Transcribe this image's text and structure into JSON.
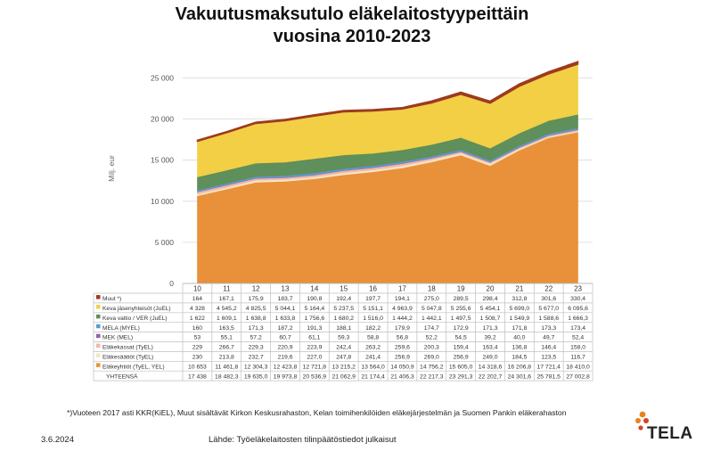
{
  "chart_data": {
    "type": "area",
    "title": "Vakuutusmaksutulo eläkelaitostyypeittäin",
    "subtitle": "vuosina 2010-2023",
    "ylabel": "Milj. eur",
    "ylim": [
      0,
      25000
    ],
    "yticks": [
      "0",
      "5 000",
      "10 000",
      "15 000",
      "20 000",
      "25 000"
    ],
    "ytick_values": [
      0,
      5000,
      10000,
      15000,
      20000,
      25000
    ],
    "categories": [
      "10",
      "11",
      "12",
      "13",
      "14",
      "15",
      "16",
      "17",
      "18",
      "19",
      "20",
      "21",
      "22",
      "23"
    ],
    "grid": true,
    "series": [
      {
        "name": "Eläkeyhtiöt (TyEL, YEL)",
        "color": "#E8913A",
        "values": [
          10653,
          11461.8,
          12304.3,
          12423.8,
          12721.8,
          13215.2,
          13564.0,
          14050.9,
          14756.2,
          15605.0,
          14318.6,
          16206.8,
          17721.4,
          18410.0
        ],
        "labels": [
          "10 653",
          "11 461,8",
          "12 304,3",
          "12 423,8",
          "12 721,8",
          "13 215,2",
          "13 564,0",
          "14 050,9",
          "14 756,2",
          "15 605,0",
          "14 318,6",
          "16 206,8",
          "17 721,4",
          "18 410,0"
        ]
      },
      {
        "name": "Eläkesäätiöt (TyEL)",
        "color": "#F7E3C2",
        "values": [
          230,
          213.8,
          232.7,
          219.6,
          227.0,
          247.8,
          241.4,
          256.9,
          269.0,
          256.9,
          249.0,
          184.5,
          123.5,
          116.7
        ],
        "labels": [
          "230",
          "213,8",
          "232,7",
          "219,6",
          "227,0",
          "247,8",
          "241,4",
          "256,9",
          "269,0",
          "256,9",
          "249,0",
          "184,5",
          "123,5",
          "116,7"
        ]
      },
      {
        "name": "Eläkekassat (TyEL)",
        "color": "#F0B8A8",
        "values": [
          229,
          266.7,
          229.3,
          220.9,
          223.9,
          242.4,
          263.2,
          259.6,
          200.3,
          159.4,
          163.4,
          136.8,
          146.4,
          158.0
        ],
        "labels": [
          "229",
          "266,7",
          "229,3",
          "220,9",
          "223,9",
          "242,4",
          "263,2",
          "259,6",
          "200,3",
          "159,4",
          "163,4",
          "136,8",
          "146,4",
          "158,0"
        ]
      },
      {
        "name": "MEK (MEL)",
        "color": "#8E63A8",
        "values": [
          53,
          55.1,
          57.2,
          60.7,
          61.1,
          59.3,
          58.8,
          56.8,
          52.2,
          54.5,
          39.2,
          40.0,
          49.7,
          52.4
        ],
        "labels": [
          "53",
          "55,1",
          "57,2",
          "60,7",
          "61,1",
          "59,3",
          "58,8",
          "56,8",
          "52,2",
          "54,5",
          "39,2",
          "40,0",
          "49,7",
          "52,4"
        ]
      },
      {
        "name": "MELA (MYEL)",
        "color": "#5B9BD5",
        "values": [
          160,
          163.5,
          171.3,
          187.2,
          191.3,
          188.1,
          182.2,
          179.9,
          174.7,
          172.9,
          171.3,
          171.8,
          173.3,
          173.4
        ],
        "labels": [
          "160",
          "163,5",
          "171,3",
          "187,2",
          "191,3",
          "188,1",
          "182,2",
          "179,9",
          "174,7",
          "172,9",
          "171,3",
          "171,8",
          "173,3",
          "173,4"
        ]
      },
      {
        "name": "Keva valtio /  VER (JuEL)",
        "color": "#5F8F5A",
        "values": [
          1622,
          1609.1,
          1638.8,
          1633.8,
          1756.6,
          1680.2,
          1516.0,
          1444.2,
          1442.1,
          1497.5,
          1508.7,
          1549.9,
          1588.6,
          1666.3
        ],
        "labels": [
          "1 622",
          "1 609,1",
          "1 638,8",
          "1 633,8",
          "1 756,6",
          "1 680,2",
          "1 516,0",
          "1 444,2",
          "1 442,1",
          "1 497,5",
          "1 508,7",
          "1 549,9",
          "1 588,6",
          "1 666,3"
        ]
      },
      {
        "name": "Keva jäsenyhteisöt (JuEL)",
        "color": "#F2CF45",
        "values": [
          4328,
          4545.2,
          4825.5,
          5044.1,
          5164.4,
          5237.5,
          5151.1,
          4963.9,
          5047.8,
          5255.6,
          5454.1,
          5699.0,
          5677.0,
          6095.6
        ],
        "labels": [
          "4 328",
          "4 545,2",
          "4 825,5",
          "5 044,1",
          "5 164,4",
          "5 237,5",
          "5 151,1",
          "4 963,9",
          "5 047,8",
          "5 255,6",
          "5 454,1",
          "5 699,0",
          "5 677,0",
          "6 095,6"
        ]
      },
      {
        "name": "Muut *)",
        "color": "#9E3A1E",
        "values": [
          164,
          167.1,
          175.9,
          183.7,
          190.8,
          192.4,
          197.7,
          194.1,
          275.0,
          289.5,
          298.4,
          312.8,
          301.6,
          330.4
        ],
        "labels": [
          "164",
          "167,1",
          "175,9",
          "183,7",
          "190,8",
          "192,4",
          "197,7",
          "194,1",
          "275,0",
          "289,5",
          "298,4",
          "312,8",
          "301,6",
          "330,4"
        ]
      }
    ],
    "total": {
      "name": "YHTEENSÄ",
      "labels": [
        "17 438",
        "18 482,3",
        "19 635,0",
        "19 973,8",
        "20 536,9",
        "21 062,9",
        "21 174,4",
        "21 406,3",
        "22 217,3",
        "23 291,3",
        "22 202,7",
        "24 301,6",
        "25 781,5",
        "27 002,8"
      ]
    }
  },
  "footnote": "*)Vuoteen 2017 asti KKR(KiEL), Muut sisältävät Kirkon Keskusrahaston, Kelan toimihenkilöiden eläkejärjestelmän ja Suomen Pankin eläkerahaston",
  "date": "3.6.2024",
  "source": "Lähde: Työeläkelaitosten tilinpäätöstiedot julkaisut",
  "logo_text": "TELA",
  "colors": {
    "logo_orange": "#E8841E",
    "logo_red": "#D2452B",
    "grid": "#d9d9d9",
    "table_border": "#bfbfbf"
  }
}
